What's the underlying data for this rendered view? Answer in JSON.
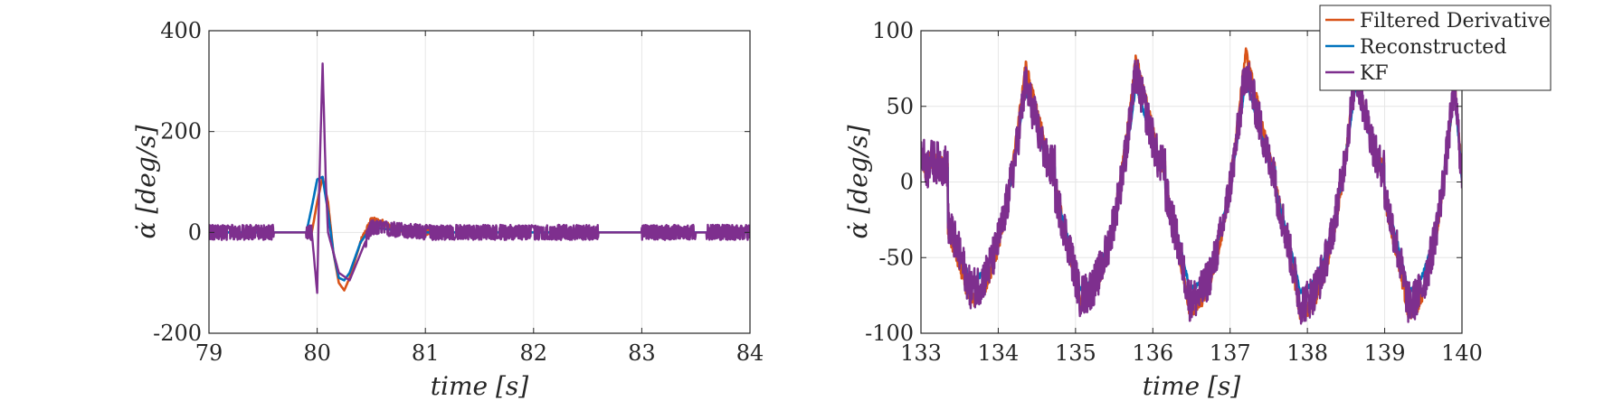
{
  "chart_data": [
    {
      "type": "line",
      "xlabel": "time [s]",
      "ylabel": "α̇ [deg/s]",
      "xlim": [
        79,
        84
      ],
      "ylim": [
        -200,
        400
      ],
      "xticks": [
        "79",
        "80",
        "81",
        "82",
        "83",
        "84"
      ],
      "yticks": [
        "-200",
        "0",
        "200",
        "400"
      ],
      "grid": true,
      "series": [
        {
          "name": "Filtered Derivative",
          "color": "#D95319",
          "x": [
            79,
            79.6,
            79.95,
            80.0,
            80.05,
            80.1,
            80.15,
            80.2,
            80.25,
            80.3,
            80.4,
            80.5,
            80.6,
            80.7,
            80.8,
            81,
            84
          ],
          "y": [
            0,
            0,
            0,
            60,
            110,
            60,
            -40,
            -100,
            -115,
            -90,
            -20,
            25,
            20,
            10,
            5,
            0,
            0
          ]
        },
        {
          "name": "Reconstructed",
          "color": "#0072BD",
          "x": [
            79,
            79.9,
            79.95,
            80.0,
            80.05,
            80.1,
            80.15,
            80.2,
            80.25,
            80.3,
            80.4,
            80.5,
            80.7,
            81,
            84
          ],
          "y": [
            0,
            0,
            50,
            105,
            110,
            40,
            -40,
            -90,
            -95,
            -80,
            -20,
            10,
            5,
            0,
            0
          ],
          "note_hidden": ""
        },
        {
          "name": "KF",
          "color": "#7E2F8E",
          "x": [
            79,
            79.5,
            79.95,
            80.0,
            80.02,
            80.05,
            80.08,
            80.1,
            80.2,
            80.3,
            80.5,
            81,
            82,
            83,
            84
          ],
          "y": [
            0,
            0,
            0,
            -120,
            100,
            335,
            100,
            0,
            -80,
            -95,
            10,
            0,
            0,
            0,
            0
          ],
          "noise_amplitude": 15
        }
      ]
    },
    {
      "type": "line",
      "xlabel": "time [s]",
      "ylabel": "α̇ [deg/s]",
      "xlim": [
        133,
        140
      ],
      "ylim": [
        -100,
        100
      ],
      "xticks": [
        "133",
        "134",
        "135",
        "136",
        "137",
        "138",
        "139",
        "140"
      ],
      "yticks": [
        "-100",
        "-50",
        "0",
        "50",
        "100"
      ],
      "grid": true,
      "legend": {
        "location": "top-right",
        "entries": [
          "Filtered Derivative",
          "Reconstructed",
          "KF"
        ]
      },
      "period": 1.42,
      "series": [
        {
          "name": "Filtered Derivative",
          "color": "#D95319",
          "peaks": [
            [
              134.35,
              77
            ],
            [
              135.78,
              82
            ],
            [
              137.2,
              86
            ],
            [
              138.62,
              70
            ],
            [
              139.9,
              68
            ]
          ],
          "troughs": [
            [
              133.63,
              -78
            ],
            [
              135.05,
              -80
            ],
            [
              136.47,
              -84
            ],
            [
              137.9,
              -86
            ],
            [
              139.3,
              -86
            ]
          ]
        },
        {
          "name": "Reconstructed",
          "color": "#0072BD",
          "peaks": [
            [
              134.35,
              62
            ],
            [
              135.78,
              64
            ],
            [
              137.2,
              68
            ],
            [
              138.62,
              64
            ],
            [
              139.9,
              62
            ]
          ],
          "troughs": [
            [
              133.63,
              -65
            ],
            [
              135.05,
              -70
            ],
            [
              136.47,
              -70
            ],
            [
              137.9,
              -72
            ],
            [
              139.3,
              -72
            ]
          ]
        },
        {
          "name": "KF",
          "color": "#7E2F8E",
          "peaks": [
            [
              134.35,
              65
            ],
            [
              135.78,
              72
            ],
            [
              137.2,
              76
            ],
            [
              138.62,
              72
            ],
            [
              139.9,
              65
            ]
          ],
          "troughs": [
            [
              133.63,
              -70
            ],
            [
              135.05,
              -75
            ],
            [
              136.47,
              -78
            ],
            [
              137.9,
              -80
            ],
            [
              139.3,
              -80
            ]
          ]
        }
      ]
    }
  ]
}
